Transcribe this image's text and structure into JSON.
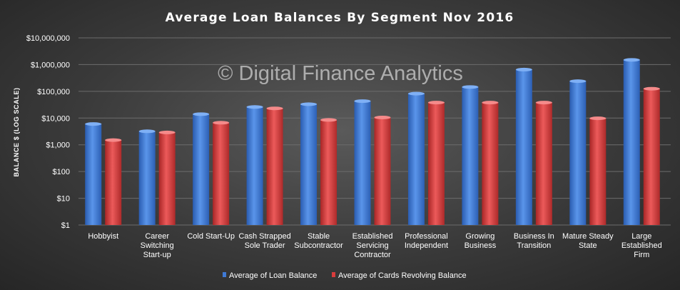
{
  "chart_data": {
    "type": "bar",
    "title": "Average Loan Balances By Segment Nov 2016",
    "ylabel": "BALANCE $ (LOG SCALE)",
    "xlabel": "",
    "yscale": "log",
    "ylim": [
      1,
      10000000
    ],
    "yticks": [
      "$1",
      "$10",
      "$100",
      "$1,000",
      "$10,000",
      "$100,000",
      "$1,000,000",
      "$10,000,000"
    ],
    "grid": true,
    "legend": "bottom",
    "categories": [
      [
        "Hobbyist"
      ],
      [
        "Career",
        "Switching",
        "Start-up"
      ],
      [
        "Cold Start-Up"
      ],
      [
        "Cash Strapped",
        "Sole Trader"
      ],
      [
        "Stable",
        "Subcontractor"
      ],
      [
        "Established",
        "Servicing",
        "Contractor"
      ],
      [
        "Professional",
        "Independent"
      ],
      [
        "Growing",
        "Business"
      ],
      [
        "Business In",
        "Transition"
      ],
      [
        "Mature Steady",
        "State"
      ],
      [
        "Large",
        "Established",
        "Firm"
      ]
    ],
    "series": [
      {
        "name": "Average of Loan Balance",
        "color": "#3f7ad6",
        "values": [
          6000,
          3200,
          14000,
          26000,
          33000,
          43000,
          82000,
          145000,
          650000,
          240000,
          1500000
        ]
      },
      {
        "name": "Average of Cards Revolving Balance",
        "color": "#d93c3c",
        "values": [
          1500,
          2900,
          6700,
          23000,
          8500,
          10500,
          38000,
          38000,
          38000,
          9800,
          125000
        ]
      }
    ],
    "watermark": "© Digital Finance Analytics"
  }
}
